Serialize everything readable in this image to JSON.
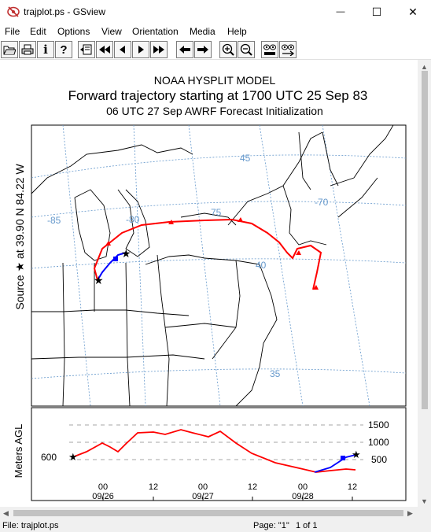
{
  "window": {
    "title": "trajplot.ps - GSview",
    "minimize_glyph": "—",
    "maximize_glyph": "☐",
    "close_glyph": "✕"
  },
  "menu": [
    "File",
    "Edit",
    "Options",
    "View",
    "Orientation",
    "Media",
    "Help"
  ],
  "toolbar": {
    "icons": [
      "open-icon",
      "print-icon",
      "info-icon",
      "help-icon",
      "goto-page-icon",
      "first-page-icon",
      "previous-page-icon",
      "next-page-icon",
      "last-page-icon",
      "back-icon",
      "forward-icon",
      "zoom-in-icon",
      "zoom-out-icon",
      "text-find-icon",
      "text-find-next-icon"
    ],
    "info_glyph": "i",
    "help_glyph": "?"
  },
  "plot": {
    "header1": "NOAA HYSPLIT MODEL",
    "header2": "Forward trajectory starting at 1700 UTC 25 Sep 83",
    "header3": "06 UTC 27 Sep    AWRF  Forecast Initialization",
    "source_label": "Source ★ at   39.90 N   84.22 W",
    "grid_labels": [
      "45",
      "-70",
      "75",
      "-80",
      "-85",
      "40",
      "35"
    ],
    "height_axis_label": "Meters AGL",
    "height_ticks": [
      "1500",
      "1000",
      "500"
    ],
    "start_height": "600",
    "time_ticks": [
      "00",
      "12",
      "00",
      "12",
      "00",
      "12"
    ],
    "date_labels": [
      "09/26",
      "09/27",
      "09/28"
    ]
  },
  "status": {
    "file": "File: trajplot.ps",
    "page": "Page: \"1\"",
    "page_of": "1 of 1"
  },
  "colors": {
    "trajectory_red": "#ff0000",
    "trajectory_blue": "#0000ff",
    "map_lines": "#000000",
    "grid_lines": "#6699cc"
  }
}
